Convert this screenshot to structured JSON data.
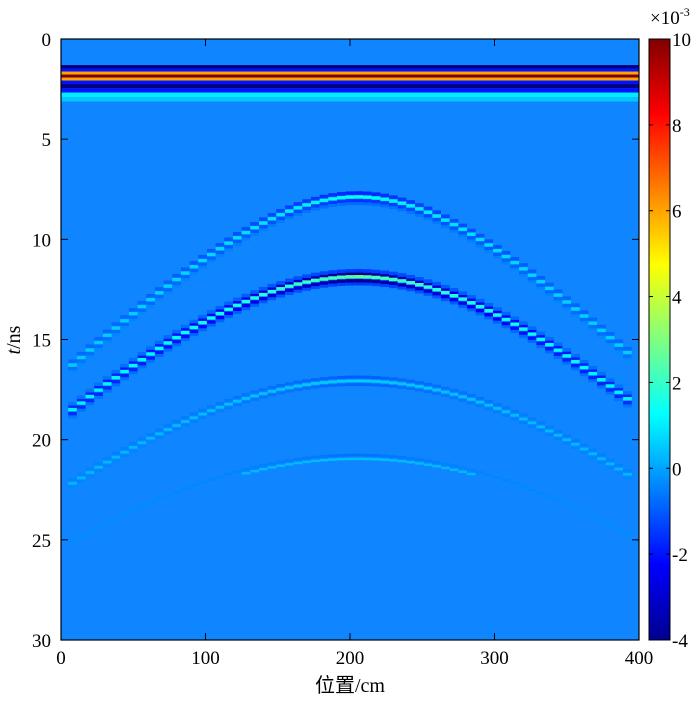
{
  "chart_data": {
    "type": "heatmap",
    "description_kind": "radargram",
    "xlabel": "位置/cm",
    "ylabel_italic": "t",
    "ylabel_rest": "/ns",
    "xlim": [
      0,
      400
    ],
    "ylim": [
      0,
      30
    ],
    "y_reversed": true,
    "x_ticks": [
      "0",
      "100",
      "200",
      "300",
      "400"
    ],
    "y_ticks": [
      "0",
      "5",
      "10",
      "15",
      "20",
      "25",
      "30"
    ],
    "colorbar": {
      "colormap": "jet",
      "range": [
        -4,
        10
      ],
      "scale_label": "×10",
      "scale_exponent": "-3",
      "ticks": [
        "10",
        "8",
        "6",
        "4",
        "2",
        "0",
        "-2",
        "-4"
      ]
    },
    "direct_wave": {
      "rows": [
        {
          "t": 1.4,
          "value": -4
        },
        {
          "t": 1.55,
          "value": -2
        },
        {
          "t": 1.7,
          "value": 6
        },
        {
          "t": 1.85,
          "value": 10
        },
        {
          "t": 2.0,
          "value": 6
        },
        {
          "t": 2.15,
          "value": -2
        },
        {
          "t": 2.35,
          "value": -4
        },
        {
          "t": 2.55,
          "value": -2
        },
        {
          "t": 2.8,
          "value": 1
        },
        {
          "t": 3.0,
          "value": 0.5
        }
      ]
    },
    "hyperbolas": [
      {
        "x0": 205,
        "t0": 7.6,
        "v": 28,
        "strength": "medium"
      },
      {
        "x0": 205,
        "t0": 11.6,
        "v": 28,
        "strength": "strong"
      },
      {
        "x0": 205,
        "t0": 16.8,
        "v": 28,
        "strength": "weak"
      },
      {
        "x0": 205,
        "t0": 20.7,
        "v": 28,
        "strength": "faint"
      }
    ]
  }
}
